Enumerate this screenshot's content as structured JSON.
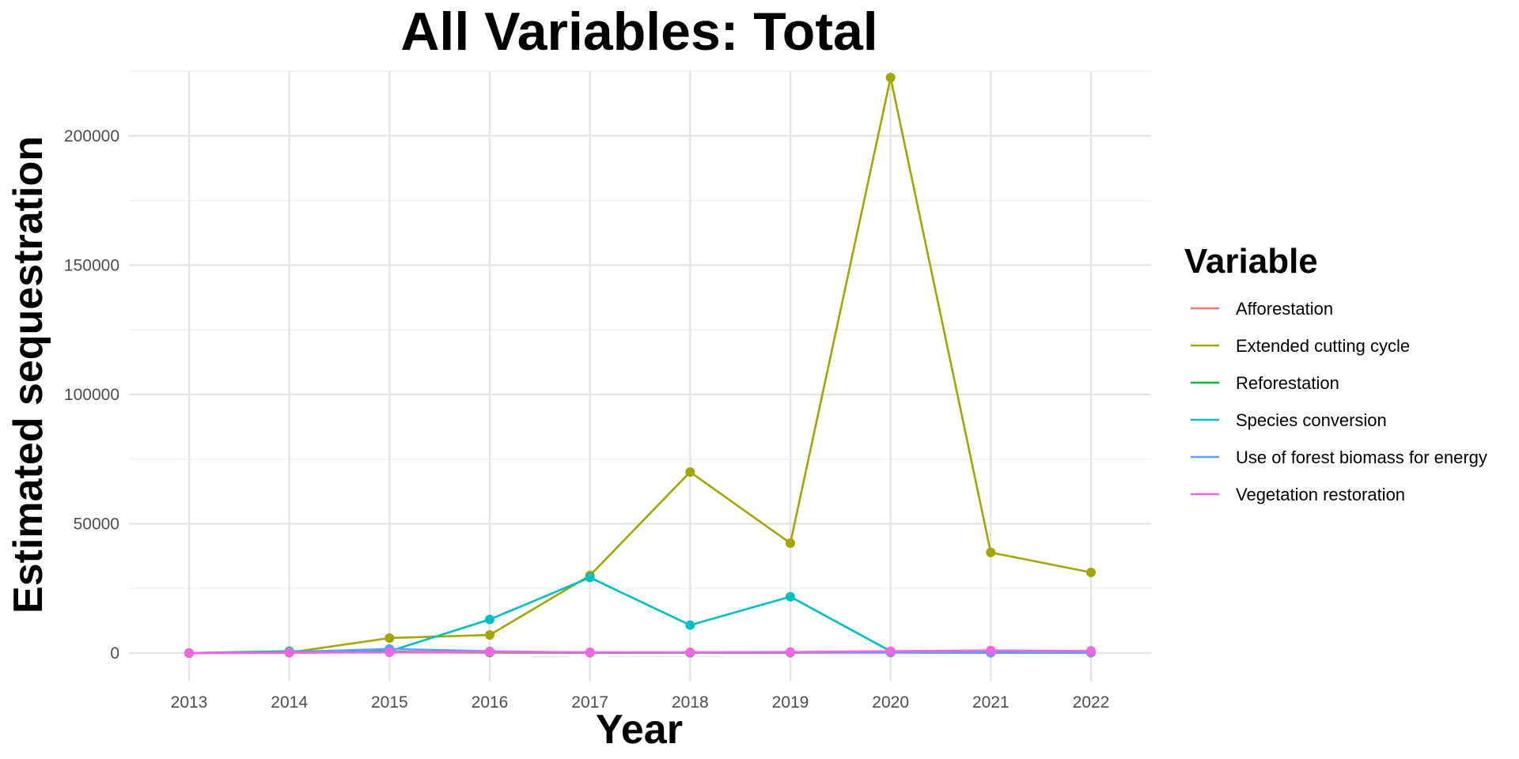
{
  "chart_data": {
    "type": "line",
    "title": "All Variables: Total",
    "xlabel": "Year",
    "ylabel": "Estimated sequestration",
    "legend_title": "Variable",
    "legend_position": "right",
    "grid": true,
    "x": [
      2013,
      2014,
      2015,
      2016,
      2017,
      2018,
      2019,
      2020,
      2021,
      2022
    ],
    "xlim": [
      2012.4,
      2022.6
    ],
    "ylim": [
      -11000,
      225000
    ],
    "yticks": [
      0,
      50000,
      100000,
      150000,
      200000
    ],
    "series": [
      {
        "name": "Afforestation",
        "color": "#F8766D",
        "values": [
          0,
          200,
          300,
          200,
          100,
          100,
          200,
          300,
          300,
          300
        ]
      },
      {
        "name": "Extended cutting cycle",
        "color": "#A3A500",
        "values": [
          0,
          200,
          5800,
          7000,
          30000,
          70000,
          42500,
          222500,
          38900,
          31200
        ]
      },
      {
        "name": "Reforestation",
        "color": "#00BA38",
        "values": [
          0,
          700,
          500,
          300,
          200,
          100,
          200,
          300,
          400,
          400
        ]
      },
      {
        "name": "Species conversion",
        "color": "#00BFC4",
        "values": [
          0,
          400,
          700,
          13000,
          29200,
          10800,
          21800,
          700,
          900,
          800
        ]
      },
      {
        "name": "Use of forest biomass for energy",
        "color": "#619CFF",
        "values": [
          0,
          400,
          1600,
          700,
          200,
          100,
          200,
          200,
          100,
          100
        ]
      },
      {
        "name": "Vegetation restoration",
        "color": "#F564E3",
        "values": [
          0,
          100,
          300,
          500,
          300,
          300,
          400,
          700,
          1000,
          800
        ]
      }
    ]
  }
}
